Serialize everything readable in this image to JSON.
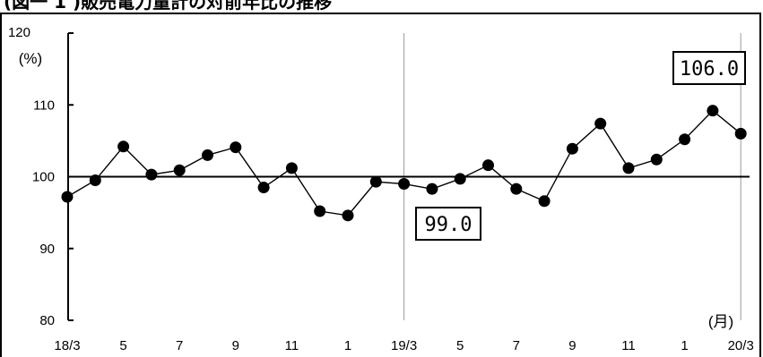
{
  "header": {
    "title": "(図一 1 )販売電力量計の対前年比の推移"
  },
  "chart_data": {
    "type": "line",
    "title": "(図一 1 )販売電力量計の対前年比の推移",
    "ylabel": "(%)",
    "xlabel": "(月)",
    "ylim": [
      80,
      120
    ],
    "yticks": [
      "80",
      "90",
      "100",
      "110",
      "120"
    ],
    "reference_line": 100,
    "vertical_markers": [
      "19/3",
      "20/3"
    ],
    "x_tick_labels": [
      "18/3",
      "5",
      "7",
      "9",
      "11",
      "1",
      "19/3",
      "5",
      "7",
      "9",
      "11",
      "1",
      "20/3"
    ],
    "x": [
      "18/3",
      "18/4",
      "18/5",
      "18/6",
      "18/7",
      "18/8",
      "18/9",
      "18/10",
      "18/11",
      "18/12",
      "19/1",
      "19/2",
      "19/3",
      "19/4",
      "19/5",
      "19/6",
      "19/7",
      "19/8",
      "19/9",
      "19/10",
      "19/11",
      "19/12",
      "20/1",
      "20/2",
      "20/3"
    ],
    "series": [
      {
        "values": [
          97.2,
          99.5,
          104.2,
          100.3,
          100.9,
          103.0,
          104.1,
          98.5,
          101.2,
          95.2,
          94.6,
          99.3,
          99.0,
          98.3,
          99.7,
          101.6,
          98.3,
          96.6,
          103.9,
          107.4,
          101.2,
          102.4,
          105.2,
          109.2,
          106.0
        ]
      }
    ],
    "annotations": [
      {
        "text": "99.0",
        "x": "19/3",
        "y": 99.0
      },
      {
        "text": "106.0",
        "x": "20/3",
        "y": 106.0
      }
    ]
  }
}
